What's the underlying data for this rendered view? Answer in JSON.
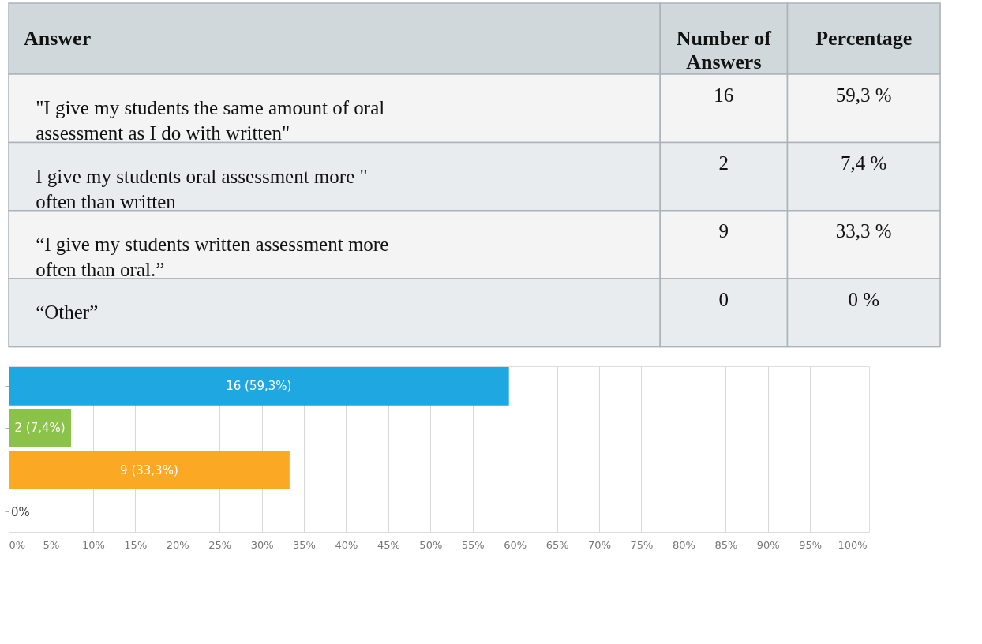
{
  "chart_data": {
    "type": "bar",
    "orientation": "horizontal",
    "categories": [
      null,
      null,
      null,
      null
    ],
    "values": [
      59.3,
      7.4,
      33.3,
      0
    ],
    "colors": [
      "#1ea7e1",
      "#8bc34a",
      "#fba925",
      "#e868a8"
    ],
    "value_labels": [
      "16 (59,3%)",
      "2 (7,4%)",
      "9 (33,3%)",
      "0%"
    ],
    "annotations": [
      "Answer",
      "Number of Answers",
      "Percentage",
      "\"I give my students the same amount of oral assessment as I do with written\"",
      "16",
      "59,3 %",
      "I give my students oral assessment more \" often than written",
      "2",
      "7,4 %",
      "“I give my students written assessment more often than oral.”",
      "9",
      "33,3 %",
      "“Other”",
      "0",
      "0 %"
    ],
    "xlim": [
      0,
      102
    ],
    "xticks": [
      {
        "value": 0,
        "label": "0%"
      },
      {
        "value": 5,
        "label": "5%"
      },
      {
        "value": 10,
        "label": "10%"
      },
      {
        "value": 15,
        "label": "15%"
      },
      {
        "value": 20,
        "label": "20%"
      },
      {
        "value": 25,
        "label": "25%"
      },
      {
        "value": 30,
        "label": "30%"
      },
      {
        "value": 35,
        "label": "35%"
      },
      {
        "value": 40,
        "label": "40%"
      },
      {
        "value": 45,
        "label": "45%"
      },
      {
        "value": 50,
        "label": "50%"
      },
      {
        "value": 55,
        "label": "55%"
      },
      {
        "value": 60,
        "label": "60%"
      },
      {
        "value": 65,
        "label": "65%"
      },
      {
        "value": 70,
        "label": "70%"
      },
      {
        "value": 75,
        "label": "75%"
      },
      {
        "value": 80,
        "label": "80%"
      },
      {
        "value": 85,
        "label": "85%"
      },
      {
        "value": 90,
        "label": "90%"
      },
      {
        "value": 95,
        "label": "95%"
      },
      {
        "value": 100,
        "label": "100%"
      }
    ],
    "grid": "x",
    "tick_labels": "x"
  }
}
